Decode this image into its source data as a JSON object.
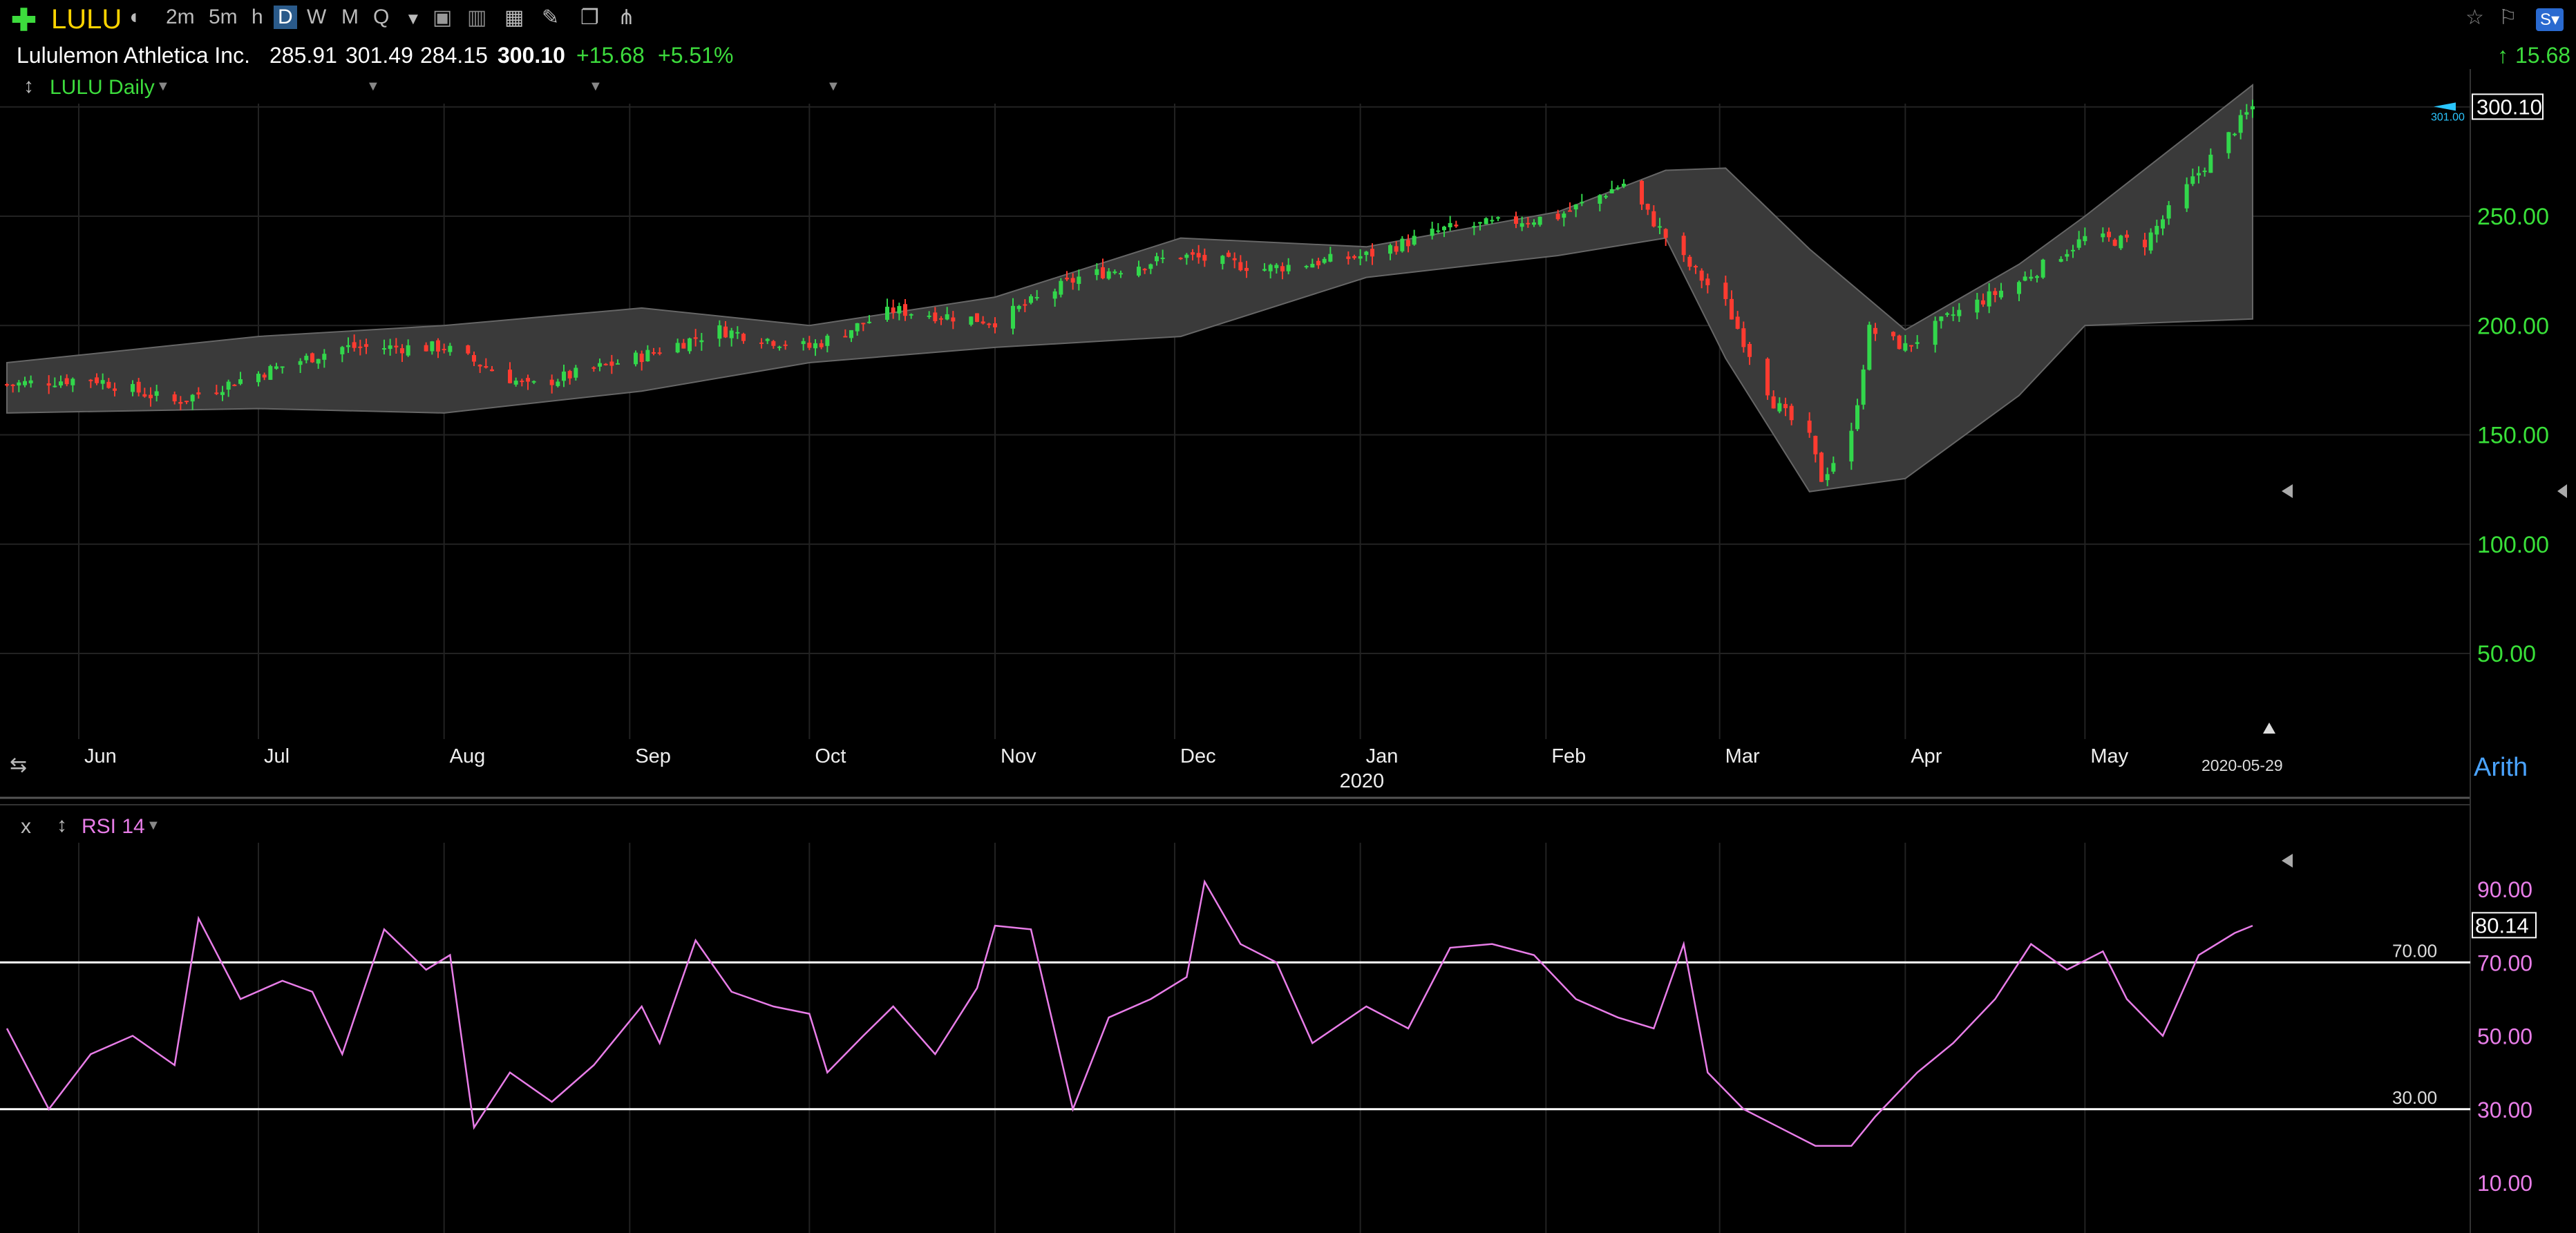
{
  "toolbar": {
    "add_icon": "plus-icon",
    "symbol": "LULU",
    "intervals": [
      "2m",
      "5m",
      "h",
      "D",
      "W",
      "M",
      "Q"
    ],
    "active_interval": "D"
  },
  "quote": {
    "company": "Lululemon Athletica Inc.",
    "open": "285.91",
    "high": "301.49",
    "low": "284.15",
    "last": "300.10",
    "change": "+15.68",
    "change_pct": "+5.51%",
    "right_change": "15.68"
  },
  "price_panel": {
    "label": "LULU Daily",
    "current_price_label": "300.10",
    "high_marker_label": "301.00",
    "y_ticks": [
      "250.00",
      "200.00",
      "150.00",
      "100.00",
      "50.00"
    ],
    "x_months": [
      "Jun",
      "Jul",
      "Aug",
      "Sep",
      "Oct",
      "Nov",
      "Dec",
      "Jan",
      "Feb",
      "Mar",
      "Apr",
      "May"
    ],
    "year_label": "2020",
    "date_label": "2020-05-29",
    "scale_label": "Arith"
  },
  "rsi_panel": {
    "close_label": "x",
    "label": "RSI 14",
    "current_value_label": "80.14",
    "y_ticks": [
      "90.00",
      "70.00",
      "50.00",
      "30.00",
      "10.00"
    ],
    "upper_line_label": "70.00",
    "lower_line_label": "30.00"
  },
  "colors": {
    "background": "#000000",
    "up_candle": "#32d74b",
    "down_candle": "#ff3b30",
    "band_fill": "#3a3a3a",
    "rsi_line": "#e87de8",
    "axis_green": "#39e039",
    "ticker": "#ffd400"
  },
  "chart_data": [
    {
      "type": "candlestick",
      "title": "LULU Daily",
      "x_start": "2019-05-20",
      "x_end": "2020-05-29",
      "ylim": [
        30,
        310
      ],
      "close_series": {
        "x": [
          "2019-05-20",
          "2019-06-03",
          "2019-06-17",
          "2019-07-01",
          "2019-07-15",
          "2019-08-01",
          "2019-08-15",
          "2019-09-03",
          "2019-09-16",
          "2019-10-01",
          "2019-10-15",
          "2019-11-01",
          "2019-11-15",
          "2019-12-02",
          "2019-12-16",
          "2020-01-02",
          "2020-01-15",
          "2020-02-03",
          "2020-02-14",
          "2020-02-24",
          "2020-03-02",
          "2020-03-10",
          "2020-03-16",
          "2020-03-18",
          "2020-03-23",
          "2020-03-26",
          "2020-04-01",
          "2020-04-09",
          "2020-04-20",
          "2020-05-01",
          "2020-05-11",
          "2020-05-20",
          "2020-05-29"
        ],
        "values": [
          173,
          176,
          165,
          178,
          190,
          190,
          172,
          186,
          198,
          190,
          207,
          202,
          222,
          232,
          226,
          232,
          244,
          250,
          265,
          230,
          210,
          165,
          148,
          130,
          150,
          198,
          190,
          205,
          220,
          240,
          238,
          270,
          300
        ]
      },
      "bollinger_upper": {
        "x": [
          "2019-05-20",
          "2019-07-01",
          "2019-08-01",
          "2019-09-03",
          "2019-10-01",
          "2019-11-01",
          "2019-12-02",
          "2020-01-02",
          "2020-02-03",
          "2020-02-21",
          "2020-03-02",
          "2020-03-16",
          "2020-04-01",
          "2020-04-20",
          "2020-05-01",
          "2020-05-29"
        ],
        "values": [
          183,
          195,
          200,
          208,
          200,
          213,
          240,
          236,
          252,
          271,
          272,
          235,
          198,
          228,
          250,
          310
        ]
      },
      "bollinger_lower": {
        "x": [
          "2019-05-20",
          "2019-07-01",
          "2019-08-01",
          "2019-09-03",
          "2019-10-01",
          "2019-11-01",
          "2019-12-02",
          "2020-01-02",
          "2020-02-03",
          "2020-02-21",
          "2020-03-02",
          "2020-03-16",
          "2020-04-01",
          "2020-04-20",
          "2020-05-01",
          "2020-05-29"
        ],
        "values": [
          160,
          162,
          160,
          170,
          183,
          190,
          195,
          222,
          232,
          240,
          185,
          124,
          130,
          168,
          200,
          203
        ]
      }
    },
    {
      "type": "line",
      "title": "RSI 14",
      "ylim": [
        5,
        100
      ],
      "series": [
        {
          "name": "RSI 14",
          "x": [
            "2019-05-20",
            "2019-05-27",
            "2019-06-03",
            "2019-06-10",
            "2019-06-17",
            "2019-06-21",
            "2019-06-28",
            "2019-07-05",
            "2019-07-10",
            "2019-07-15",
            "2019-07-22",
            "2019-07-29",
            "2019-08-02",
            "2019-08-06",
            "2019-08-12",
            "2019-08-19",
            "2019-08-26",
            "2019-09-03",
            "2019-09-06",
            "2019-09-12",
            "2019-09-18",
            "2019-09-25",
            "2019-10-01",
            "2019-10-04",
            "2019-10-10",
            "2019-10-15",
            "2019-10-22",
            "2019-10-29",
            "2019-11-01",
            "2019-11-07",
            "2019-11-14",
            "2019-11-20",
            "2019-11-27",
            "2019-12-03",
            "2019-12-06",
            "2019-12-12",
            "2019-12-18",
            "2019-12-24",
            "2020-01-02",
            "2020-01-09",
            "2020-01-16",
            "2020-01-23",
            "2020-01-30",
            "2020-02-06",
            "2020-02-13",
            "2020-02-19",
            "2020-02-24",
            "2020-02-28",
            "2020-03-05",
            "2020-03-11",
            "2020-03-17",
            "2020-03-23",
            "2020-03-27",
            "2020-04-03",
            "2020-04-09",
            "2020-04-16",
            "2020-04-22",
            "2020-04-28",
            "2020-05-04",
            "2020-05-08",
            "2020-05-14",
            "2020-05-20",
            "2020-05-26",
            "2020-05-29"
          ],
          "values": [
            52,
            30,
            45,
            50,
            42,
            82,
            60,
            65,
            62,
            45,
            79,
            68,
            72,
            25,
            40,
            32,
            42,
            58,
            48,
            76,
            62,
            58,
            56,
            40,
            50,
            58,
            45,
            63,
            80,
            79,
            30,
            55,
            60,
            66,
            92,
            75,
            70,
            48,
            58,
            52,
            74,
            75,
            72,
            60,
            55,
            52,
            75,
            40,
            30,
            25,
            20,
            20,
            28,
            40,
            48,
            60,
            75,
            68,
            73,
            60,
            50,
            72,
            78,
            80
          ]
        }
      ],
      "reference_lines": [
        70,
        30
      ]
    }
  ]
}
